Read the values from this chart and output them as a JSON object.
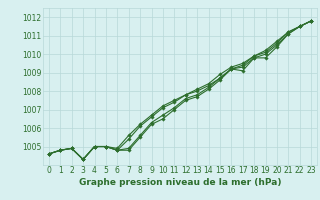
{
  "x": [
    0,
    1,
    2,
    3,
    4,
    5,
    6,
    7,
    8,
    9,
    10,
    11,
    12,
    13,
    14,
    15,
    16,
    17,
    18,
    19,
    20,
    21,
    22,
    23
  ],
  "line1": [
    1004.6,
    1004.8,
    1004.9,
    1004.3,
    1005.0,
    1005.0,
    1004.8,
    1004.8,
    1005.5,
    1006.2,
    1006.5,
    1007.0,
    1007.5,
    1007.7,
    1008.1,
    1008.6,
    1009.2,
    1009.1,
    1009.8,
    1009.8,
    1010.4,
    1011.1,
    1011.5,
    1011.8
  ],
  "line2": [
    1004.6,
    1004.8,
    1004.9,
    1004.3,
    1005.0,
    1005.0,
    1004.8,
    1005.4,
    1006.1,
    1006.6,
    1007.1,
    1007.4,
    1007.8,
    1008.0,
    1008.3,
    1008.7,
    1009.2,
    1009.4,
    1009.9,
    1010.1,
    1010.6,
    1011.2,
    1011.5,
    1011.8
  ],
  "line3": [
    1004.6,
    1004.8,
    1004.9,
    1004.3,
    1005.0,
    1005.0,
    1004.9,
    1005.6,
    1006.2,
    1006.7,
    1007.2,
    1007.5,
    1007.8,
    1008.1,
    1008.4,
    1008.9,
    1009.3,
    1009.5,
    1009.9,
    1010.2,
    1010.7,
    1011.2,
    1011.5,
    1011.8
  ],
  "line4": [
    1004.6,
    1004.8,
    1004.9,
    1004.3,
    1005.0,
    1005.0,
    1004.8,
    1004.9,
    1005.6,
    1006.3,
    1006.7,
    1007.1,
    1007.6,
    1007.8,
    1008.2,
    1008.7,
    1009.2,
    1009.3,
    1009.8,
    1010.0,
    1010.5,
    1011.1,
    1011.5,
    1011.8
  ],
  "ylim": [
    1004.0,
    1012.5
  ],
  "yticks": [
    1005,
    1006,
    1007,
    1008,
    1009,
    1010,
    1011,
    1012
  ],
  "xticks": [
    0,
    1,
    2,
    3,
    4,
    5,
    6,
    7,
    8,
    9,
    10,
    11,
    12,
    13,
    14,
    15,
    16,
    17,
    18,
    19,
    20,
    21,
    22,
    23
  ],
  "xlabel": "Graphe pression niveau de la mer (hPa)",
  "line_color": "#2d6e2d",
  "bg_color": "#d8f0f0",
  "grid_color": "#b8d8d8",
  "marker": "D",
  "marker_size": 1.8,
  "line_width": 0.8,
  "xlabel_fontsize": 6.5,
  "tick_fontsize": 5.5
}
